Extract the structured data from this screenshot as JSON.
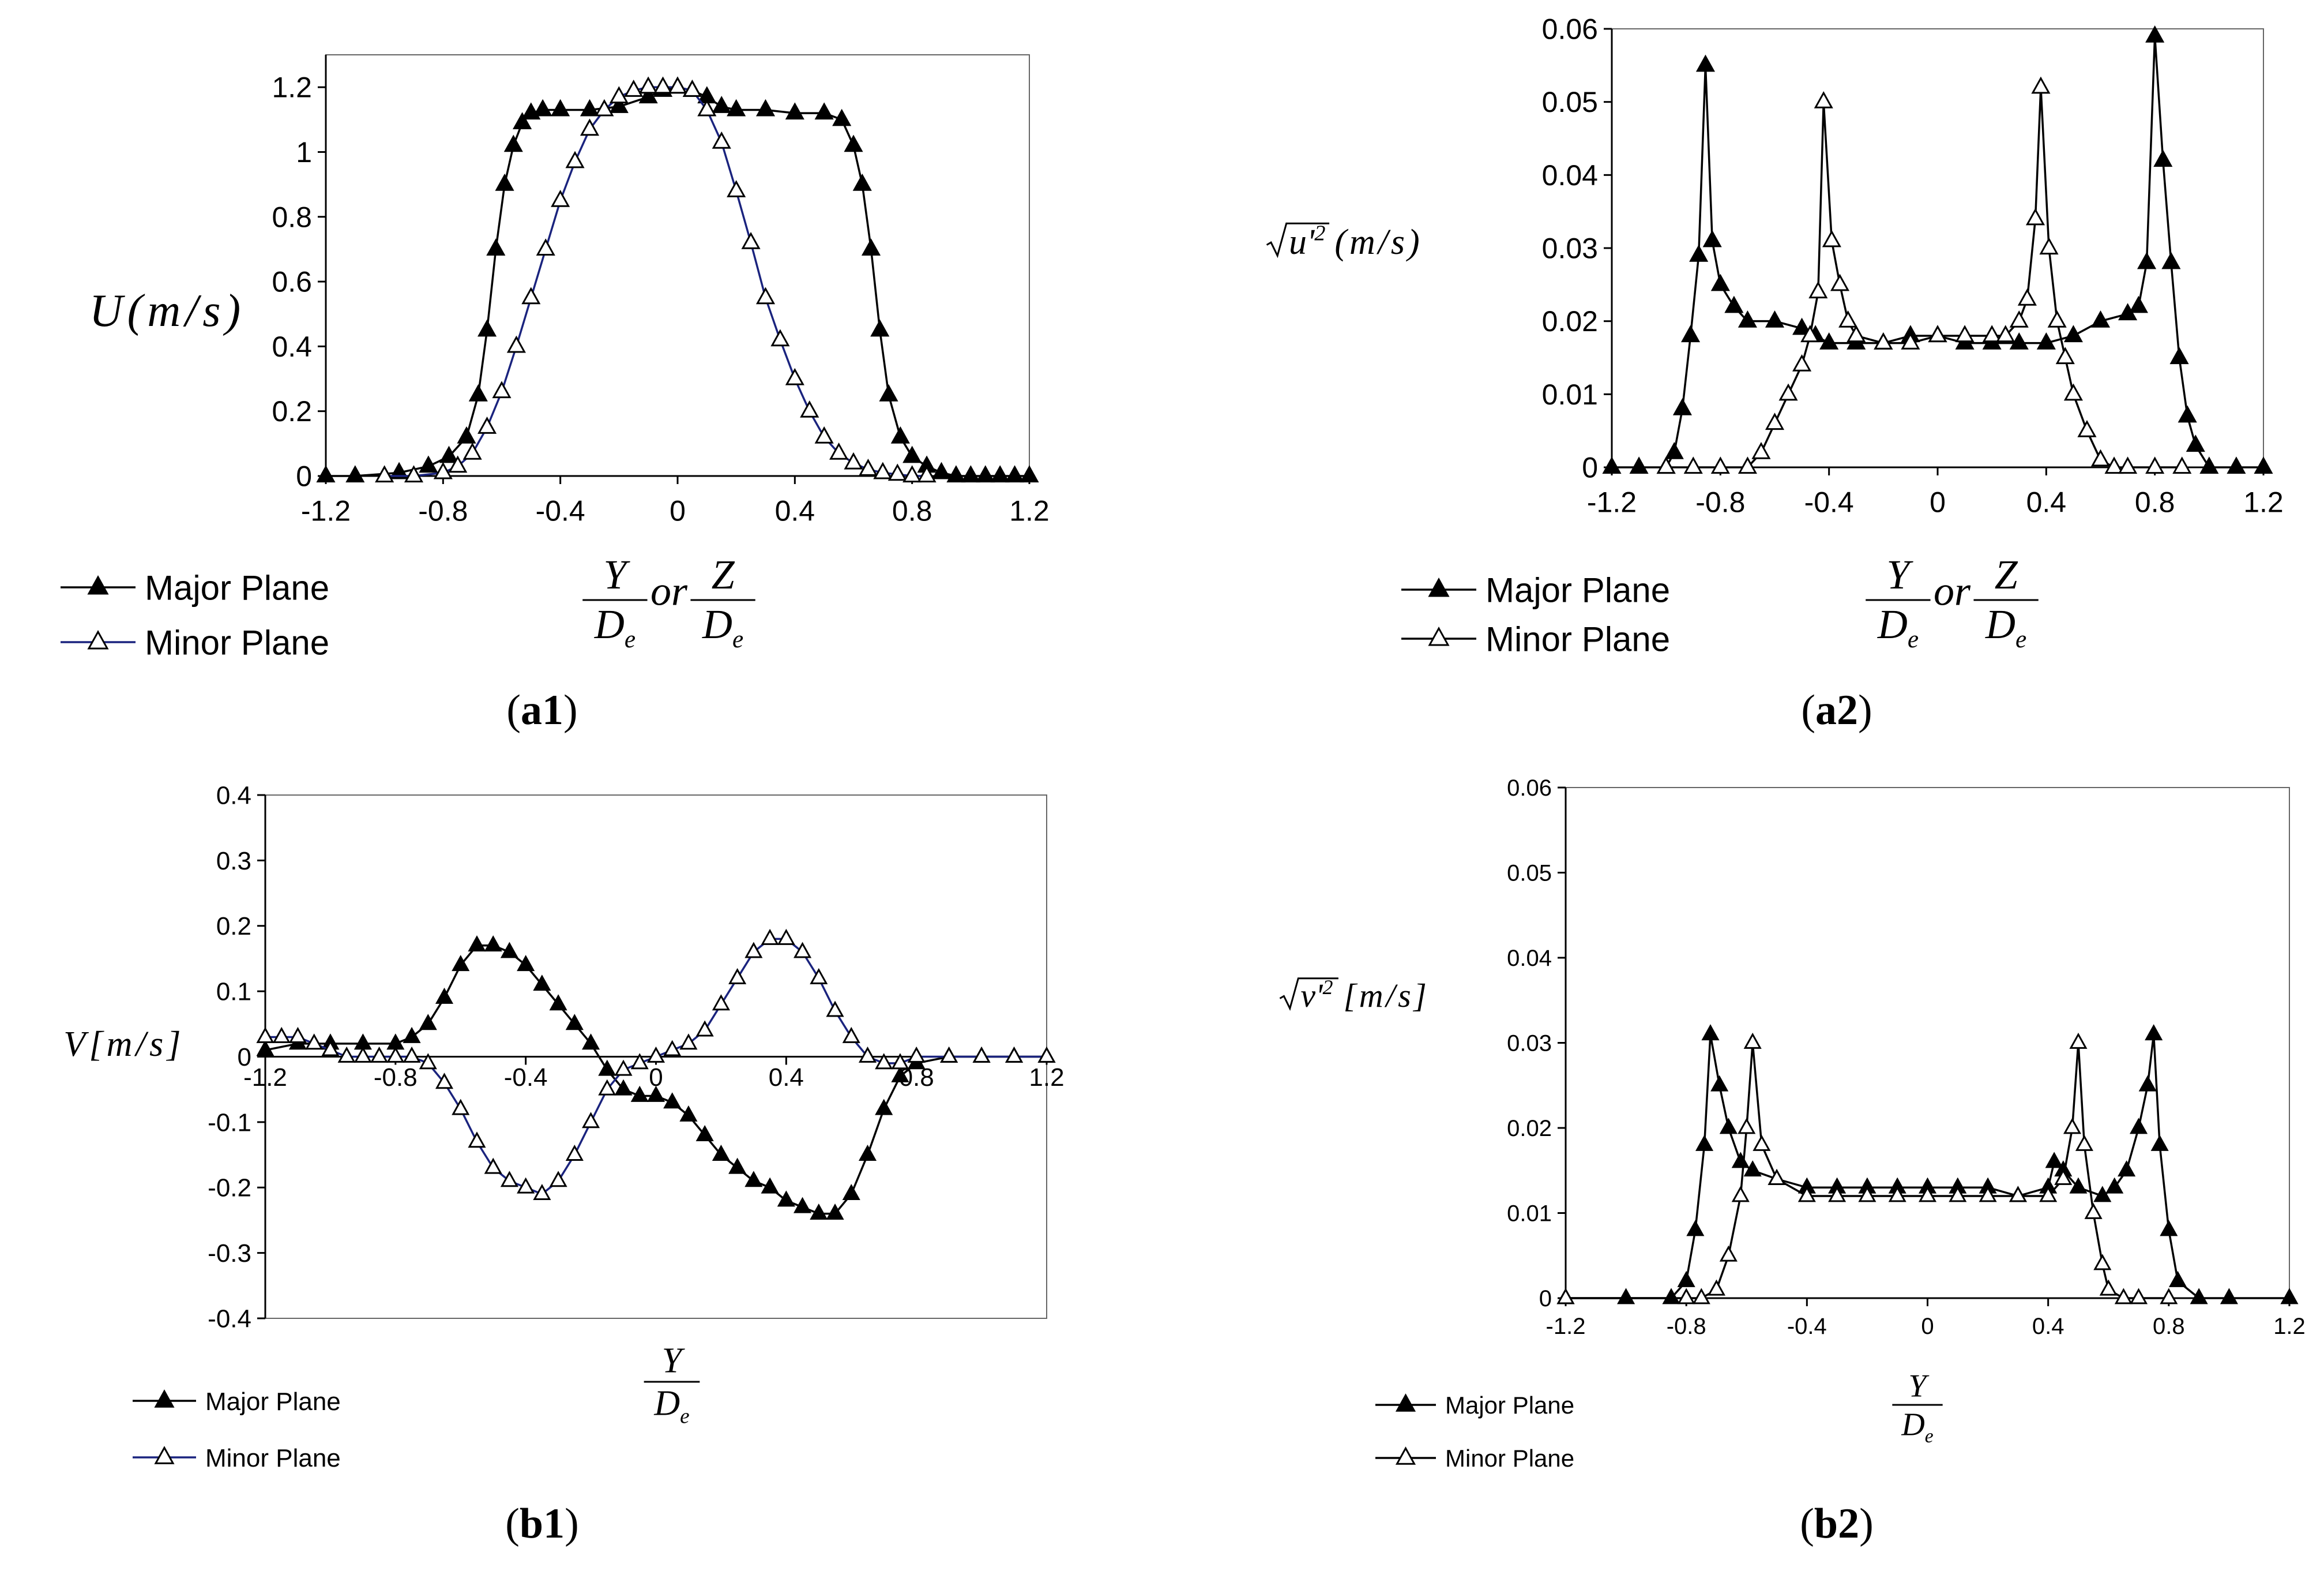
{
  "chart_data": [
    {
      "id": "a1",
      "type": "line",
      "caption": {
        "open": "(",
        "bold": "a1",
        "close": ")"
      },
      "ylabel": "U(m/s)",
      "xlabel": "Y/De or Z/De",
      "xlim": [
        -1.2,
        1.2
      ],
      "ylim": [
        0,
        1.3
      ],
      "xticks": [
        -1.2,
        -0.8,
        -0.4,
        0,
        0.4,
        0.8,
        1.2
      ],
      "xtick_labels": [
        "-1.2",
        "-0.8",
        "-0.4",
        "0",
        "0.4",
        "0.8",
        "1.2"
      ],
      "yticks": [
        0,
        0.2,
        0.4,
        0.6,
        0.8,
        1,
        1.2
      ],
      "ytick_labels": [
        "0",
        "0.2",
        "0.4",
        "0.6",
        "0.8",
        "1",
        "1.2"
      ],
      "legend": [
        "Major Plane",
        "Minor Plane"
      ],
      "series": [
        {
          "name": "Major Plane",
          "marker": "filled-triangle",
          "color": "#000000",
          "x": [
            -1.2,
            -1.1,
            -0.95,
            -0.85,
            -0.78,
            -0.72,
            -0.68,
            -0.65,
            -0.62,
            -0.59,
            -0.56,
            -0.53,
            -0.5,
            -0.46,
            -0.4,
            -0.3,
            -0.2,
            -0.1,
            -0.05,
            0,
            0.05,
            0.1,
            0.15,
            0.2,
            0.3,
            0.4,
            0.5,
            0.56,
            0.6,
            0.63,
            0.66,
            0.69,
            0.72,
            0.76,
            0.8,
            0.85,
            0.9,
            0.95,
            1.0,
            1.05,
            1.1,
            1.15,
            1.2
          ],
          "y": [
            0,
            0,
            0.01,
            0.03,
            0.06,
            0.12,
            0.25,
            0.45,
            0.7,
            0.9,
            1.02,
            1.09,
            1.12,
            1.13,
            1.13,
            1.13,
            1.14,
            1.17,
            1.19,
            1.2,
            1.19,
            1.17,
            1.14,
            1.13,
            1.13,
            1.12,
            1.12,
            1.1,
            1.02,
            0.9,
            0.7,
            0.45,
            0.25,
            0.12,
            0.06,
            0.03,
            0.01,
            0,
            0,
            0,
            0,
            0,
            0
          ]
        },
        {
          "name": "Minor Plane",
          "marker": "open-triangle",
          "color": "#1a237e",
          "x": [
            -1.0,
            -0.9,
            -0.8,
            -0.75,
            -0.7,
            -0.65,
            -0.6,
            -0.55,
            -0.5,
            -0.45,
            -0.4,
            -0.35,
            -0.3,
            -0.25,
            -0.2,
            -0.15,
            -0.1,
            -0.05,
            0,
            0.05,
            0.1,
            0.15,
            0.2,
            0.25,
            0.3,
            0.35,
            0.4,
            0.45,
            0.5,
            0.55,
            0.6,
            0.65,
            0.7,
            0.75,
            0.8,
            0.85
          ],
          "y": [
            0,
            0,
            0.01,
            0.03,
            0.07,
            0.15,
            0.26,
            0.4,
            0.55,
            0.7,
            0.85,
            0.97,
            1.07,
            1.13,
            1.17,
            1.19,
            1.2,
            1.2,
            1.2,
            1.19,
            1.13,
            1.03,
            0.88,
            0.72,
            0.55,
            0.42,
            0.3,
            0.2,
            0.12,
            0.07,
            0.04,
            0.02,
            0.01,
            0.005,
            0,
            0
          ]
        }
      ]
    },
    {
      "id": "a2",
      "type": "line",
      "caption": {
        "open": "(",
        "bold": "a2",
        "close": ")"
      },
      "ylabel": "√(u'²) (m/s)",
      "xlabel": "Y/De or Z/De",
      "xlim": [
        -1.2,
        1.2
      ],
      "ylim": [
        0,
        0.06
      ],
      "xticks": [
        -1.2,
        -0.8,
        -0.4,
        0,
        0.4,
        0.8,
        1.2
      ],
      "xtick_labels": [
        "-1.2",
        "-0.8",
        "-0.4",
        "0",
        "0.4",
        "0.8",
        "1.2"
      ],
      "yticks": [
        0,
        0.01,
        0.02,
        0.03,
        0.04,
        0.05,
        0.06
      ],
      "ytick_labels": [
        "0",
        "0.01",
        "0.02",
        "0.03",
        "0.04",
        "0.05",
        "0.06"
      ],
      "legend": [
        "Major Plane",
        "Minor Plane"
      ],
      "series": [
        {
          "name": "Major Plane",
          "marker": "filled-triangle",
          "color": "#000000",
          "x": [
            -1.2,
            -1.1,
            -1.0,
            -0.97,
            -0.94,
            -0.91,
            -0.88,
            -0.855,
            -0.83,
            -0.8,
            -0.75,
            -0.7,
            -0.6,
            -0.5,
            -0.45,
            -0.4,
            -0.3,
            -0.2,
            -0.1,
            0,
            0.1,
            0.2,
            0.3,
            0.4,
            0.5,
            0.6,
            0.7,
            0.74,
            0.77,
            0.8,
            0.83,
            0.86,
            0.89,
            0.92,
            0.95,
            1.0,
            1.1,
            1.2
          ],
          "y": [
            0,
            0,
            0,
            0.002,
            0.008,
            0.018,
            0.029,
            0.055,
            0.031,
            0.025,
            0.022,
            0.02,
            0.02,
            0.019,
            0.018,
            0.017,
            0.017,
            0.017,
            0.018,
            0.018,
            0.017,
            0.017,
            0.017,
            0.017,
            0.018,
            0.02,
            0.021,
            0.022,
            0.028,
            0.059,
            0.042,
            0.028,
            0.015,
            0.007,
            0.003,
            0,
            0,
            0
          ]
        },
        {
          "name": "Minor Plane",
          "marker": "open-triangle",
          "color": "#000000",
          "x": [
            -1.0,
            -0.9,
            -0.8,
            -0.7,
            -0.65,
            -0.6,
            -0.55,
            -0.5,
            -0.47,
            -0.44,
            -0.42,
            -0.39,
            -0.36,
            -0.33,
            -0.3,
            -0.2,
            -0.1,
            0,
            0.1,
            0.2,
            0.25,
            0.3,
            0.33,
            0.36,
            0.38,
            0.41,
            0.44,
            0.47,
            0.5,
            0.55,
            0.6,
            0.65,
            0.7,
            0.8,
            0.9
          ],
          "y": [
            0,
            0,
            0,
            0,
            0.002,
            0.006,
            0.01,
            0.014,
            0.018,
            0.024,
            0.05,
            0.031,
            0.025,
            0.02,
            0.018,
            0.017,
            0.017,
            0.018,
            0.018,
            0.018,
            0.018,
            0.02,
            0.023,
            0.034,
            0.052,
            0.03,
            0.02,
            0.015,
            0.01,
            0.005,
            0.001,
            0,
            0,
            0,
            0
          ]
        }
      ]
    },
    {
      "id": "b1",
      "type": "line",
      "caption": {
        "open": "(",
        "bold": "b1",
        "close": ")"
      },
      "ylabel": "V[m/s]",
      "xlabel": "Y/De",
      "xlim": [
        -1.2,
        1.2
      ],
      "ylim": [
        -0.4,
        0.4
      ],
      "xticks": [
        -1.2,
        -0.8,
        -0.4,
        0,
        0.4,
        0.8,
        1.2
      ],
      "xtick_labels": [
        "-1.2",
        "-0.8",
        "-0.4",
        "0",
        "0.4",
        "0.8",
        "1.2"
      ],
      "yticks": [
        -0.4,
        -0.3,
        -0.2,
        -0.1,
        0,
        0.1,
        0.2,
        0.3,
        0.4
      ],
      "ytick_labels": [
        "-0.4",
        "-0.3",
        "-0.2",
        "-0.1",
        "0",
        "0.1",
        "0.2",
        "0.3",
        "0.4"
      ],
      "legend": [
        "Major Plane",
        "Minor Plane"
      ],
      "series": [
        {
          "name": "Major Plane",
          "marker": "filled-triangle",
          "color": "#000000",
          "x": [
            -1.2,
            -1.1,
            -1.0,
            -0.9,
            -0.8,
            -0.75,
            -0.7,
            -0.65,
            -0.6,
            -0.55,
            -0.5,
            -0.45,
            -0.4,
            -0.35,
            -0.3,
            -0.25,
            -0.2,
            -0.15,
            -0.1,
            -0.05,
            0,
            0.05,
            0.1,
            0.15,
            0.2,
            0.25,
            0.3,
            0.35,
            0.4,
            0.45,
            0.5,
            0.55,
            0.6,
            0.65,
            0.7,
            0.75,
            0.8,
            0.9,
            1.0,
            1.1,
            1.2
          ],
          "y": [
            0.01,
            0.02,
            0.02,
            0.02,
            0.02,
            0.03,
            0.05,
            0.09,
            0.14,
            0.17,
            0.17,
            0.16,
            0.14,
            0.11,
            0.08,
            0.05,
            0.02,
            -0.02,
            -0.05,
            -0.06,
            -0.06,
            -0.07,
            -0.09,
            -0.12,
            -0.15,
            -0.17,
            -0.19,
            -0.2,
            -0.22,
            -0.23,
            -0.24,
            -0.24,
            -0.21,
            -0.15,
            -0.08,
            -0.03,
            -0.01,
            0,
            0,
            0,
            0
          ]
        },
        {
          "name": "Minor Plane",
          "marker": "open-triangle",
          "color": "#1a237e",
          "x": [
            -1.2,
            -1.15,
            -1.1,
            -1.05,
            -1.0,
            -0.95,
            -0.9,
            -0.85,
            -0.8,
            -0.75,
            -0.7,
            -0.65,
            -0.6,
            -0.55,
            -0.5,
            -0.45,
            -0.4,
            -0.35,
            -0.3,
            -0.25,
            -0.2,
            -0.15,
            -0.1,
            -0.05,
            0,
            0.05,
            0.1,
            0.15,
            0.2,
            0.25,
            0.3,
            0.35,
            0.4,
            0.45,
            0.5,
            0.55,
            0.6,
            0.65,
            0.7,
            0.75,
            0.8,
            0.9,
            1.0,
            1.1,
            1.2
          ],
          "y": [
            0.03,
            0.03,
            0.03,
            0.02,
            0.01,
            0,
            0,
            0,
            0,
            0,
            -0.01,
            -0.04,
            -0.08,
            -0.13,
            -0.17,
            -0.19,
            -0.2,
            -0.21,
            -0.19,
            -0.15,
            -0.1,
            -0.05,
            -0.02,
            -0.01,
            0,
            0.01,
            0.02,
            0.04,
            0.08,
            0.12,
            0.16,
            0.18,
            0.18,
            0.16,
            0.12,
            0.07,
            0.03,
            0,
            -0.01,
            -0.01,
            0,
            0,
            0,
            0,
            0
          ]
        }
      ]
    },
    {
      "id": "b2",
      "type": "line",
      "caption": {
        "open": "(",
        "bold": "b2",
        "close": ")"
      },
      "ylabel": "√(v'²) [m/s]",
      "xlabel": "Y/De",
      "xlim": [
        -1.2,
        1.2
      ],
      "ylim": [
        0,
        0.06
      ],
      "xticks": [
        -1.2,
        -0.8,
        -0.4,
        0,
        0.4,
        0.8,
        1.2
      ],
      "xtick_labels": [
        "-1.2",
        "-0.8",
        "-0.4",
        "0",
        "0.4",
        "0.8",
        "1.2"
      ],
      "yticks": [
        0,
        0.01,
        0.02,
        0.03,
        0.04,
        0.05,
        0.06
      ],
      "ytick_labels": [
        "0",
        "0.01",
        "0.02",
        "0.03",
        "0.04",
        "0.05",
        "0.06"
      ],
      "legend": [
        "Major Plane",
        "Minor Plane"
      ],
      "series": [
        {
          "name": "Major Plane",
          "marker": "filled-triangle",
          "color": "#000000",
          "x": [
            -1.2,
            -1.0,
            -0.85,
            -0.8,
            -0.77,
            -0.74,
            -0.72,
            -0.69,
            -0.66,
            -0.62,
            -0.58,
            -0.5,
            -0.4,
            -0.3,
            -0.2,
            -0.1,
            0,
            0.1,
            0.2,
            0.3,
            0.4,
            0.42,
            0.45,
            0.5,
            0.58,
            0.62,
            0.66,
            0.7,
            0.73,
            0.75,
            0.77,
            0.8,
            0.83,
            0.9,
            1.0,
            1.2
          ],
          "y": [
            0,
            0,
            0,
            0.002,
            0.008,
            0.018,
            0.031,
            0.025,
            0.02,
            0.016,
            0.015,
            0.014,
            0.013,
            0.013,
            0.013,
            0.013,
            0.013,
            0.013,
            0.013,
            0.012,
            0.013,
            0.016,
            0.015,
            0.013,
            0.012,
            0.013,
            0.015,
            0.02,
            0.025,
            0.031,
            0.018,
            0.008,
            0.002,
            0,
            0,
            0
          ]
        },
        {
          "name": "Minor Plane",
          "marker": "open-triangle",
          "color": "#000000",
          "x": [
            -1.2,
            -0.8,
            -0.75,
            -0.7,
            -0.66,
            -0.62,
            -0.6,
            -0.58,
            -0.55,
            -0.5,
            -0.4,
            -0.3,
            -0.2,
            -0.1,
            0,
            0.1,
            0.2,
            0.3,
            0.4,
            0.45,
            0.48,
            0.5,
            0.52,
            0.55,
            0.58,
            0.6,
            0.65,
            0.7,
            0.8
          ],
          "y": [
            0,
            0,
            0,
            0.001,
            0.005,
            0.012,
            0.02,
            0.03,
            0.018,
            0.014,
            0.012,
            0.012,
            0.012,
            0.012,
            0.012,
            0.012,
            0.012,
            0.012,
            0.012,
            0.014,
            0.02,
            0.03,
            0.018,
            0.01,
            0.004,
            0.001,
            0,
            0,
            0
          ]
        }
      ]
    }
  ]
}
